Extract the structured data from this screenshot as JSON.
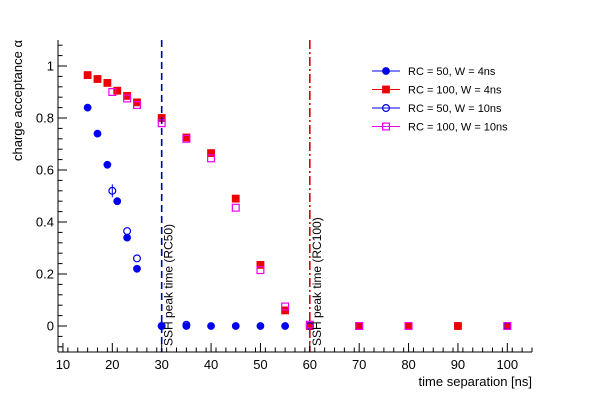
{
  "chart_data": {
    "type": "scatter",
    "title": "",
    "xlabel": "time separation [ns]",
    "ylabel": "charge acceptance α",
    "xlim": [
      9,
      105
    ],
    "ylim": [
      -0.1,
      1.1
    ],
    "x_ticks": [
      10,
      20,
      30,
      40,
      50,
      60,
      70,
      80,
      90,
      100
    ],
    "x_tick_labels": [
      "10",
      "20",
      "30",
      "40",
      "50",
      "60",
      "70",
      "80",
      "90",
      "100"
    ],
    "y_ticks": [
      0,
      0.2,
      0.4,
      0.6,
      0.8,
      1
    ],
    "y_tick_labels": [
      "0",
      "0.2",
      "0.4",
      "0.6",
      "0.8",
      "1"
    ],
    "grid": false,
    "legend_position": "top-right",
    "series": [
      {
        "name": "RC = 50, W = 4ns",
        "color": "#0000ee",
        "marker": "filled-circle",
        "x": [
          15,
          17,
          19,
          21,
          23,
          25,
          30,
          35,
          40,
          45,
          50,
          55,
          60,
          70,
          80,
          90,
          100
        ],
        "y": [
          0.84,
          0.74,
          0.62,
          0.48,
          0.34,
          0.22,
          0.0,
          0.0,
          0.0,
          0.0,
          0.0,
          0.0,
          0.0,
          0.0,
          0.0,
          0.0,
          0.0
        ]
      },
      {
        "name": "RC = 100, W = 4ns",
        "color": "#ee0000",
        "marker": "filled-square",
        "x": [
          15,
          17,
          19,
          21,
          23,
          25,
          30,
          35,
          40,
          45,
          50,
          55,
          60,
          70,
          80,
          90,
          100
        ],
        "y": [
          0.965,
          0.95,
          0.935,
          0.905,
          0.885,
          0.86,
          0.8,
          0.725,
          0.665,
          0.49,
          0.235,
          0.06,
          0.0,
          0.0,
          0.0,
          0.0,
          0.0
        ]
      },
      {
        "name": "RC = 50, W = 10ns",
        "color": "#0000ee",
        "marker": "open-circle",
        "x": [
          20,
          23,
          25,
          30,
          35,
          60,
          100
        ],
        "y": [
          0.52,
          0.365,
          0.26,
          0.0,
          0.005,
          0.0,
          0.0
        ],
        "yerr": [
          0.025,
          0.0,
          0.0,
          0.0,
          0.0,
          0.0,
          0.0
        ]
      },
      {
        "name": "RC = 100, W = 10ns",
        "color": "#ee00ee",
        "marker": "open-square",
        "x": [
          20,
          23,
          25,
          30,
          35,
          40,
          45,
          50,
          55,
          60,
          70,
          80,
          100
        ],
        "y": [
          0.9,
          0.875,
          0.85,
          0.78,
          0.72,
          0.645,
          0.455,
          0.215,
          0.075,
          0.005,
          0.0,
          0.0,
          0.0
        ]
      }
    ],
    "vertical_lines": [
      {
        "x": 30,
        "label": "SSH peak time (RC50)",
        "color": "#0000aa",
        "style": "dashed"
      },
      {
        "x": 60,
        "label": "SSH peak time (RC100)",
        "color": "#dd0000",
        "style": "dashdot"
      }
    ]
  }
}
